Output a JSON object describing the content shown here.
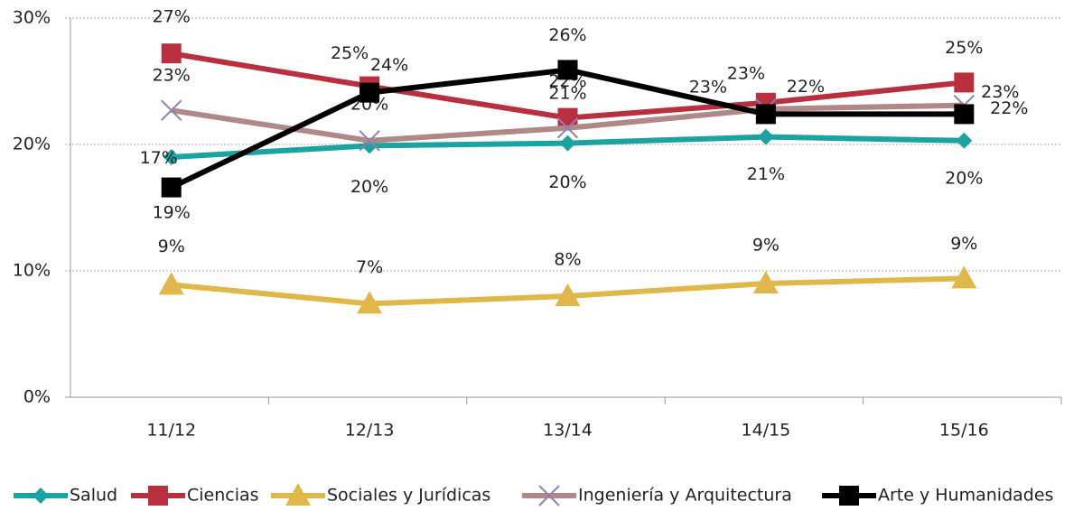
{
  "chart_data": {
    "type": "line",
    "categories": [
      "11/12",
      "12/13",
      "13/14",
      "14/15",
      "15/16"
    ],
    "series": [
      {
        "name": "Salud",
        "color": "#1aa3a0",
        "marker": "diamond",
        "values": [
          19,
          19.9,
          20.1,
          20.6,
          20.3
        ],
        "value_labels": [
          "19%",
          "20%",
          "20%",
          "21%",
          "20%"
        ]
      },
      {
        "name": "Ciencias",
        "color": "#b83040",
        "marker": "square",
        "values": [
          27.2,
          24.6,
          22.1,
          23.3,
          24.9
        ],
        "value_labels": [
          "27%",
          "25%",
          "22%",
          "23%",
          "25%"
        ]
      },
      {
        "name": "Sociales y Jurídicas",
        "color": "#e0b84a",
        "marker": "triangle",
        "values": [
          8.9,
          7.4,
          8.0,
          9.0,
          9.4
        ],
        "value_labels": [
          "9%",
          "7%",
          "8%",
          "9%",
          "9%"
        ]
      },
      {
        "name": "Ingeniería y Arquitectura",
        "color": "#b08888",
        "marker": "x",
        "values": [
          22.7,
          20.3,
          21.3,
          22.8,
          23.1
        ],
        "value_labels": [
          "23%",
          "20%",
          "21%",
          "23%",
          "23%"
        ]
      },
      {
        "name": "Arte y Humanidades",
        "color": "#000000",
        "marker": "square",
        "values": [
          16.6,
          24.1,
          25.9,
          22.4,
          22.4
        ],
        "value_labels": [
          "17%",
          "24%",
          "26%",
          "22%",
          "22%"
        ]
      }
    ],
    "ylim": [
      0,
      30
    ],
    "yticks": [
      {
        "value": 0,
        "label": "0%"
      },
      {
        "value": 10,
        "label": "10%"
      },
      {
        "value": 20,
        "label": "20%"
      },
      {
        "value": 30,
        "label": "30%"
      }
    ],
    "grid": true,
    "legend": "bottom"
  }
}
